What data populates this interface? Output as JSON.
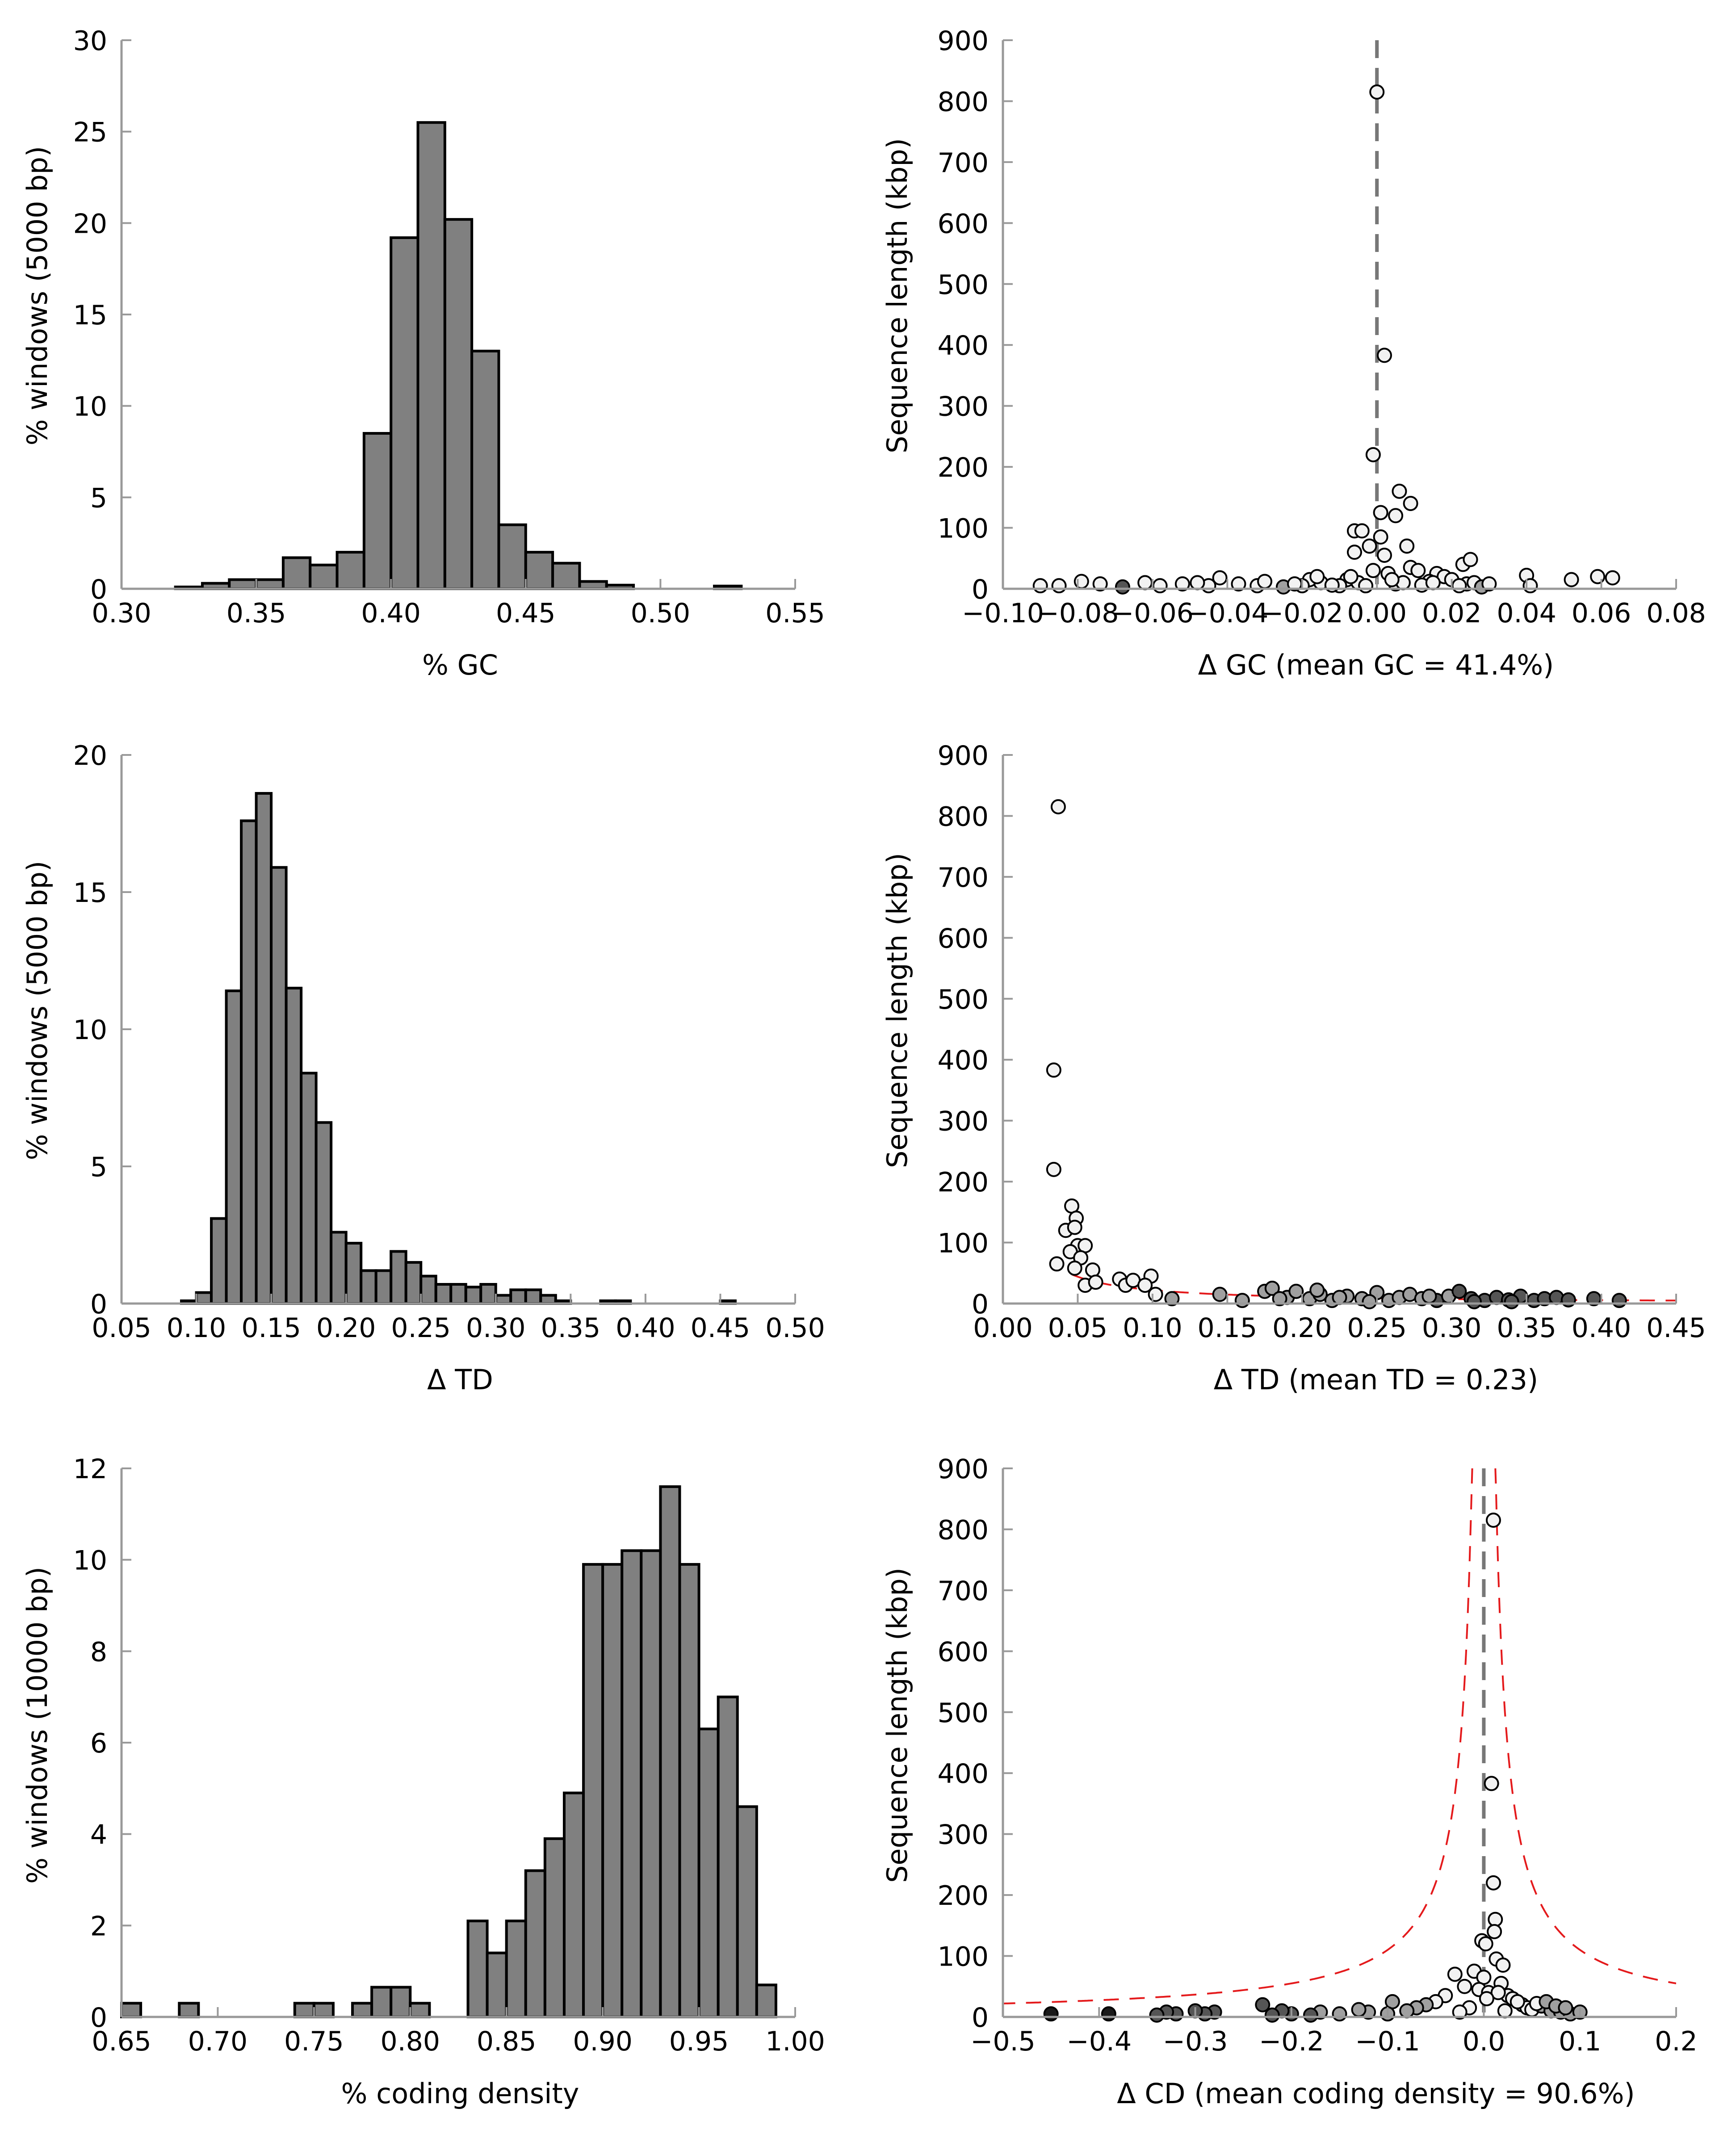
{
  "colors": {
    "bar_fill": "#808080",
    "bar_edge": "#000000",
    "axis": "#999999",
    "curve": "#e41a1c",
    "mean_line": "#777777",
    "point_light": "#f2f2f2",
    "point_mid": "#a0a0a0",
    "point_dark": "#555555",
    "point_black": "#1a1a1a"
  },
  "chart_data": [
    {
      "type": "bar",
      "panel": "histogram-gc",
      "xlabel": "% GC",
      "ylabel": "% windows (5000 bp)",
      "xlim": [
        0.3,
        0.55
      ],
      "ylim": [
        0,
        30
      ],
      "xticks": [
        "0.30",
        "0.35",
        "0.40",
        "0.45",
        "0.50",
        "0.55"
      ],
      "yticks": [
        "0",
        "5",
        "10",
        "15",
        "20",
        "25",
        "30"
      ],
      "bin_width": 0.01,
      "bins": [
        {
          "x": 0.32,
          "v": 0.1
        },
        {
          "x": 0.33,
          "v": 0.3
        },
        {
          "x": 0.34,
          "v": 0.5
        },
        {
          "x": 0.35,
          "v": 0.5
        },
        {
          "x": 0.36,
          "v": 1.7
        },
        {
          "x": 0.37,
          "v": 1.3
        },
        {
          "x": 0.38,
          "v": 2.0
        },
        {
          "x": 0.39,
          "v": 8.5
        },
        {
          "x": 0.4,
          "v": 19.2
        },
        {
          "x": 0.41,
          "v": 25.5
        },
        {
          "x": 0.42,
          "v": 20.2
        },
        {
          "x": 0.43,
          "v": 13.0
        },
        {
          "x": 0.44,
          "v": 3.5
        },
        {
          "x": 0.45,
          "v": 2.0
        },
        {
          "x": 0.46,
          "v": 1.4
        },
        {
          "x": 0.47,
          "v": 0.4
        },
        {
          "x": 0.48,
          "v": 0.2
        },
        {
          "x": 0.52,
          "v": 0.15
        }
      ]
    },
    {
      "type": "scatter",
      "panel": "scatter-gc",
      "xlabel": "Δ GC (mean GC = 41.4%)",
      "ylabel": "Sequence length (kbp)",
      "xlim": [
        -0.1,
        0.08
      ],
      "ylim": [
        0,
        900
      ],
      "xticks": [
        "−0.10",
        "−0.08",
        "−0.06",
        "−0.04",
        "−0.02",
        "0.00",
        "0.02",
        "0.04",
        "0.06",
        "0.08"
      ],
      "yticks": [
        "0",
        "100",
        "200",
        "300",
        "400",
        "500",
        "600",
        "700",
        "800",
        "900"
      ],
      "mean_line_x": 0.0,
      "threshold_curve": {
        "center": 0.0,
        "k": 3,
        "min": 1,
        "side": "both"
      },
      "points": [
        [
          0.0,
          815
        ],
        [
          0.002,
          383
        ],
        [
          -0.001,
          220
        ],
        [
          0.006,
          160
        ],
        [
          0.009,
          140
        ],
        [
          0.001,
          125
        ],
        [
          0.005,
          120
        ],
        [
          -0.006,
          95
        ],
        [
          -0.004,
          95
        ],
        [
          0.008,
          70
        ],
        [
          0.001,
          85
        ],
        [
          -0.002,
          70
        ],
        [
          -0.006,
          60
        ],
        [
          0.002,
          55
        ],
        [
          0.009,
          35
        ],
        [
          -0.001,
          30
        ],
        [
          0.003,
          25
        ],
        [
          0.011,
          30
        ],
        [
          0.016,
          25
        ],
        [
          0.018,
          20
        ],
        [
          -0.008,
          15
        ],
        [
          -0.01,
          5
        ],
        [
          0.005,
          8
        ],
        [
          -0.005,
          10
        ],
        [
          0.014,
          12
        ],
        [
          0.02,
          15
        ],
        [
          -0.015,
          10
        ],
        [
          -0.018,
          15
        ],
        [
          0.012,
          6
        ],
        [
          -0.003,
          5
        ],
        [
          0.024,
          8
        ],
        [
          -0.012,
          6
        ],
        [
          0.007,
          10
        ],
        [
          0.004,
          15
        ],
        [
          -0.007,
          20
        ],
        [
          -0.02,
          5
        ],
        [
          -0.025,
          3
        ],
        [
          -0.032,
          5
        ],
        [
          -0.037,
          8
        ],
        [
          -0.045,
          5
        ],
        [
          -0.052,
          8
        ],
        [
          -0.058,
          5
        ],
        [
          -0.062,
          10
        ],
        [
          -0.068,
          3
        ],
        [
          -0.074,
          8
        ],
        [
          -0.079,
          12
        ],
        [
          -0.085,
          5
        ],
        [
          -0.09,
          5
        ],
        [
          -0.03,
          12
        ],
        [
          -0.042,
          18
        ],
        [
          -0.048,
          10
        ],
        [
          0.022,
          5
        ],
        [
          0.026,
          10
        ],
        [
          0.023,
          40
        ],
        [
          0.025,
          48
        ],
        [
          0.04,
          22
        ],
        [
          0.041,
          5
        ],
        [
          0.052,
          15
        ],
        [
          0.059,
          20
        ],
        [
          0.063,
          18
        ],
        [
          0.015,
          10
        ],
        [
          -0.016,
          20
        ],
        [
          -0.022,
          8
        ],
        [
          0.028,
          3
        ],
        [
          0.03,
          8
        ]
      ]
    },
    {
      "type": "bar",
      "panel": "histogram-td",
      "xlabel": "Δ TD",
      "ylabel": "% windows (5000 bp)",
      "xlim": [
        0.05,
        0.5
      ],
      "ylim": [
        0,
        20
      ],
      "xticks": [
        "0.05",
        "0.10",
        "0.15",
        "0.20",
        "0.25",
        "0.30",
        "0.35",
        "0.40",
        "0.45",
        "0.50"
      ],
      "yticks": [
        "0",
        "5",
        "10",
        "15",
        "20"
      ],
      "bin_width": 0.01,
      "bins": [
        {
          "x": 0.09,
          "v": 0.1
        },
        {
          "x": 0.1,
          "v": 0.4
        },
        {
          "x": 0.11,
          "v": 3.1
        },
        {
          "x": 0.12,
          "v": 11.4
        },
        {
          "x": 0.13,
          "v": 17.6
        },
        {
          "x": 0.14,
          "v": 18.6
        },
        {
          "x": 0.15,
          "v": 15.9
        },
        {
          "x": 0.16,
          "v": 11.5
        },
        {
          "x": 0.17,
          "v": 8.4
        },
        {
          "x": 0.18,
          "v": 6.6
        },
        {
          "x": 0.19,
          "v": 2.6
        },
        {
          "x": 0.2,
          "v": 2.2
        },
        {
          "x": 0.21,
          "v": 1.2
        },
        {
          "x": 0.22,
          "v": 1.2
        },
        {
          "x": 0.23,
          "v": 1.9
        },
        {
          "x": 0.24,
          "v": 1.5
        },
        {
          "x": 0.25,
          "v": 1.0
        },
        {
          "x": 0.26,
          "v": 0.7
        },
        {
          "x": 0.27,
          "v": 0.7
        },
        {
          "x": 0.28,
          "v": 0.6
        },
        {
          "x": 0.29,
          "v": 0.7
        },
        {
          "x": 0.3,
          "v": 0.3
        },
        {
          "x": 0.31,
          "v": 0.5
        },
        {
          "x": 0.32,
          "v": 0.5
        },
        {
          "x": 0.33,
          "v": 0.3
        },
        {
          "x": 0.34,
          "v": 0.1
        },
        {
          "x": 0.37,
          "v": 0.1
        },
        {
          "x": 0.38,
          "v": 0.1
        },
        {
          "x": 0.45,
          "v": 0.1
        }
      ]
    },
    {
      "type": "scatter",
      "panel": "scatter-td",
      "xlabel": "Δ TD (mean TD = 0.23)",
      "ylabel": "Sequence length (kbp)",
      "xlim": [
        0.0,
        0.45
      ],
      "ylim": [
        0,
        900
      ],
      "xticks": [
        "0.00",
        "0.05",
        "0.10",
        "0.15",
        "0.20",
        "0.25",
        "0.30",
        "0.35",
        "0.40",
        "0.45"
      ],
      "yticks": [
        "0",
        "100",
        "200",
        "300",
        "400",
        "500",
        "600",
        "700",
        "800",
        "900"
      ],
      "threshold_curve": {
        "center": 0.0,
        "k": 2.2,
        "min": 0.046,
        "side": "right"
      },
      "points": [
        [
          0.037,
          815
        ],
        [
          0.034,
          383
        ],
        [
          0.034,
          220
        ],
        [
          0.046,
          160
        ],
        [
          0.049,
          140
        ],
        [
          0.042,
          120
        ],
        [
          0.048,
          125
        ],
        [
          0.05,
          95
        ],
        [
          0.055,
          95
        ],
        [
          0.045,
          85
        ],
        [
          0.052,
          75
        ],
        [
          0.036,
          65
        ],
        [
          0.048,
          58
        ],
        [
          0.06,
          55
        ],
        [
          0.055,
          30
        ],
        [
          0.062,
          35
        ],
        [
          0.078,
          40
        ],
        [
          0.082,
          30
        ],
        [
          0.087,
          38
        ],
        [
          0.099,
          45
        ],
        [
          0.095,
          30
        ],
        [
          0.102,
          15
        ],
        [
          0.113,
          8
        ],
        [
          0.145,
          15
        ],
        [
          0.16,
          5
        ],
        [
          0.175,
          20
        ],
        [
          0.18,
          25
        ],
        [
          0.19,
          10
        ],
        [
          0.196,
          20
        ],
        [
          0.205,
          8
        ],
        [
          0.212,
          15
        ],
        [
          0.22,
          5
        ],
        [
          0.23,
          12
        ],
        [
          0.24,
          8
        ],
        [
          0.25,
          18
        ],
        [
          0.258,
          5
        ],
        [
          0.265,
          10
        ],
        [
          0.272,
          15
        ],
        [
          0.28,
          8
        ],
        [
          0.29,
          5
        ],
        [
          0.298,
          12
        ],
        [
          0.305,
          20
        ],
        [
          0.313,
          8
        ],
        [
          0.322,
          5
        ],
        [
          0.33,
          10
        ],
        [
          0.338,
          6
        ],
        [
          0.346,
          12
        ],
        [
          0.355,
          5
        ],
        [
          0.362,
          8
        ],
        [
          0.37,
          10
        ],
        [
          0.378,
          6
        ],
        [
          0.395,
          8
        ],
        [
          0.412,
          5
        ],
        [
          0.225,
          10
        ],
        [
          0.245,
          3
        ],
        [
          0.285,
          12
        ],
        [
          0.315,
          3
        ],
        [
          0.34,
          3
        ],
        [
          0.185,
          8
        ],
        [
          0.21,
          22
        ]
      ]
    },
    {
      "type": "bar",
      "panel": "histogram-cd",
      "xlabel": "% coding density",
      "ylabel": "% windows (10000 bp)",
      "xlim": [
        0.65,
        1.0
      ],
      "ylim": [
        0,
        12
      ],
      "xticks": [
        "0.65",
        "0.70",
        "0.75",
        "0.80",
        "0.85",
        "0.90",
        "0.95",
        "1.00"
      ],
      "yticks": [
        "0",
        "2",
        "4",
        "6",
        "8",
        "10",
        "12"
      ],
      "bin_width": 0.01,
      "bins": [
        {
          "x": 0.65,
          "v": 0.3
        },
        {
          "x": 0.68,
          "v": 0.3
        },
        {
          "x": 0.74,
          "v": 0.3
        },
        {
          "x": 0.75,
          "v": 0.3
        },
        {
          "x": 0.77,
          "v": 0.3
        },
        {
          "x": 0.78,
          "v": 0.65
        },
        {
          "x": 0.79,
          "v": 0.65
        },
        {
          "x": 0.8,
          "v": 0.3
        },
        {
          "x": 0.83,
          "v": 2.1
        },
        {
          "x": 0.84,
          "v": 1.4
        },
        {
          "x": 0.85,
          "v": 2.1
        },
        {
          "x": 0.86,
          "v": 3.2
        },
        {
          "x": 0.87,
          "v": 3.9
        },
        {
          "x": 0.88,
          "v": 4.9
        },
        {
          "x": 0.89,
          "v": 9.9
        },
        {
          "x": 0.9,
          "v": 9.9
        },
        {
          "x": 0.91,
          "v": 10.2
        },
        {
          "x": 0.92,
          "v": 10.2
        },
        {
          "x": 0.93,
          "v": 11.6
        },
        {
          "x": 0.94,
          "v": 9.9
        },
        {
          "x": 0.95,
          "v": 6.3
        },
        {
          "x": 0.96,
          "v": 7.0
        },
        {
          "x": 0.97,
          "v": 4.6
        },
        {
          "x": 0.98,
          "v": 0.7
        }
      ]
    },
    {
      "type": "scatter",
      "panel": "scatter-cd",
      "xlabel": "Δ CD (mean coding density = 90.6%)",
      "ylabel": "Sequence length (kbp)",
      "xlim": [
        -0.5,
        0.2
      ],
      "ylim": [
        0,
        900
      ],
      "xticks": [
        "−0.5",
        "−0.4",
        "−0.3",
        "−0.2",
        "−0.1",
        "0.0",
        "0.1",
        "0.2"
      ],
      "yticks": [
        "0",
        "100",
        "200",
        "300",
        "400",
        "500",
        "600",
        "700",
        "800",
        "900"
      ],
      "mean_line_x": 0.0,
      "threshold_curve": {
        "center": 0.0,
        "k": 11,
        "min": 0.012,
        "side": "both"
      },
      "points": [
        [
          0.01,
          815
        ],
        [
          0.008,
          383
        ],
        [
          0.01,
          220
        ],
        [
          0.012,
          160
        ],
        [
          0.011,
          140
        ],
        [
          -0.002,
          125
        ],
        [
          0.002,
          120
        ],
        [
          0.013,
          95
        ],
        [
          0.02,
          85
        ],
        [
          -0.01,
          75
        ],
        [
          -0.03,
          70
        ],
        [
          0.0,
          65
        ],
        [
          0.018,
          55
        ],
        [
          -0.02,
          50
        ],
        [
          -0.005,
          45
        ],
        [
          0.005,
          40
        ],
        [
          0.025,
          35
        ],
        [
          0.03,
          30
        ],
        [
          -0.04,
          35
        ],
        [
          -0.05,
          25
        ],
        [
          0.04,
          20
        ],
        [
          0.045,
          15
        ],
        [
          0.05,
          12
        ],
        [
          0.06,
          18
        ],
        [
          0.07,
          10
        ],
        [
          0.08,
          8
        ],
        [
          0.09,
          5
        ],
        [
          0.1,
          8
        ],
        [
          -0.06,
          20
        ],
        [
          -0.07,
          15
        ],
        [
          -0.08,
          10
        ],
        [
          -0.095,
          25
        ],
        [
          -0.1,
          5
        ],
        [
          -0.12,
          8
        ],
        [
          -0.13,
          12
        ],
        [
          -0.15,
          5
        ],
        [
          -0.17,
          8
        ],
        [
          -0.18,
          3
        ],
        [
          -0.2,
          5
        ],
        [
          -0.21,
          10
        ],
        [
          -0.22,
          3
        ],
        [
          -0.23,
          20
        ],
        [
          -0.28,
          8
        ],
        [
          -0.29,
          5
        ],
        [
          -0.3,
          10
        ],
        [
          -0.32,
          5
        ],
        [
          -0.33,
          8
        ],
        [
          -0.34,
          3
        ],
        [
          -0.39,
          5
        ],
        [
          -0.45,
          5
        ],
        [
          0.015,
          40
        ],
        [
          0.022,
          10
        ],
        [
          0.035,
          25
        ],
        [
          0.055,
          22
        ],
        [
          0.065,
          25
        ],
        [
          0.075,
          18
        ],
        [
          0.085,
          15
        ],
        [
          -0.015,
          15
        ],
        [
          -0.025,
          8
        ],
        [
          0.003,
          30
        ]
      ]
    }
  ]
}
